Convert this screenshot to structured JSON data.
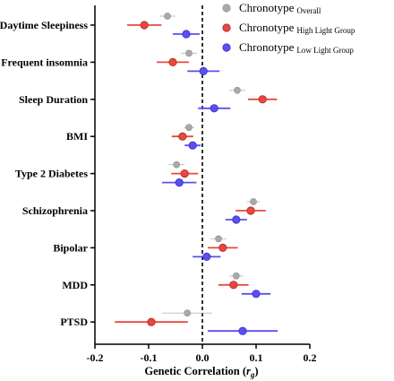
{
  "chart_data": {
    "type": "scatter",
    "subtype": "forest-plot",
    "xlabel_main": "Genetic Correlation (",
    "xlabel_var": "r",
    "xlabel_sub": "g",
    "xlabel_close": ")",
    "xlim": [
      -0.2,
      0.2
    ],
    "xticks": [
      "-0.2",
      "-0.1",
      "0.0",
      "0.1",
      "0.2"
    ],
    "xtick_values": [
      -0.2,
      -0.1,
      0.0,
      0.1,
      0.2
    ],
    "reference_line": 0.0,
    "legend_position": "top-right",
    "categories": [
      "Daytime Sleepiness",
      "Frequent insomnia",
      "Sleep Duration",
      "BMI",
      "Type 2 Diabetes",
      "Schizophrenia",
      "Bipolar",
      "MDD",
      "PTSD"
    ],
    "series": [
      {
        "name_main": "Chronotype",
        "name_sub": "Overall",
        "color": "#a9a9a9",
        "estimates": [
          -0.065,
          -0.025,
          0.065,
          -0.025,
          -0.048,
          0.095,
          0.03,
          0.063,
          -0.028
        ],
        "ci_low": [
          -0.08,
          -0.04,
          0.05,
          -0.035,
          -0.063,
          0.083,
          0.015,
          0.05,
          -0.075
        ],
        "ci_high": [
          -0.05,
          -0.01,
          0.08,
          -0.015,
          -0.033,
          0.107,
          0.045,
          0.076,
          0.018
        ]
      },
      {
        "name_main": "Chronotype",
        "name_sub": "High Light Group",
        "color": "#e8483f",
        "estimates": [
          -0.108,
          -0.055,
          0.112,
          -0.037,
          -0.033,
          0.09,
          0.038,
          0.058,
          -0.095
        ],
        "ci_low": [
          -0.14,
          -0.085,
          0.085,
          -0.057,
          -0.058,
          0.062,
          0.01,
          0.03,
          -0.163
        ],
        "ci_high": [
          -0.076,
          -0.025,
          0.139,
          -0.017,
          -0.008,
          0.118,
          0.066,
          0.086,
          -0.027
        ]
      },
      {
        "name_main": "Chronotype",
        "name_sub": "Low Light Group",
        "color": "#5a4ff0",
        "estimates": [
          -0.03,
          0.002,
          0.022,
          -0.018,
          -0.043,
          0.063,
          0.008,
          0.1,
          0.075
        ],
        "ci_low": [
          -0.055,
          -0.028,
          -0.008,
          -0.033,
          -0.075,
          0.043,
          -0.018,
          0.073,
          0.01
        ],
        "ci_high": [
          -0.005,
          0.032,
          0.052,
          -0.003,
          -0.011,
          0.083,
          0.034,
          0.127,
          0.14
        ]
      }
    ]
  }
}
